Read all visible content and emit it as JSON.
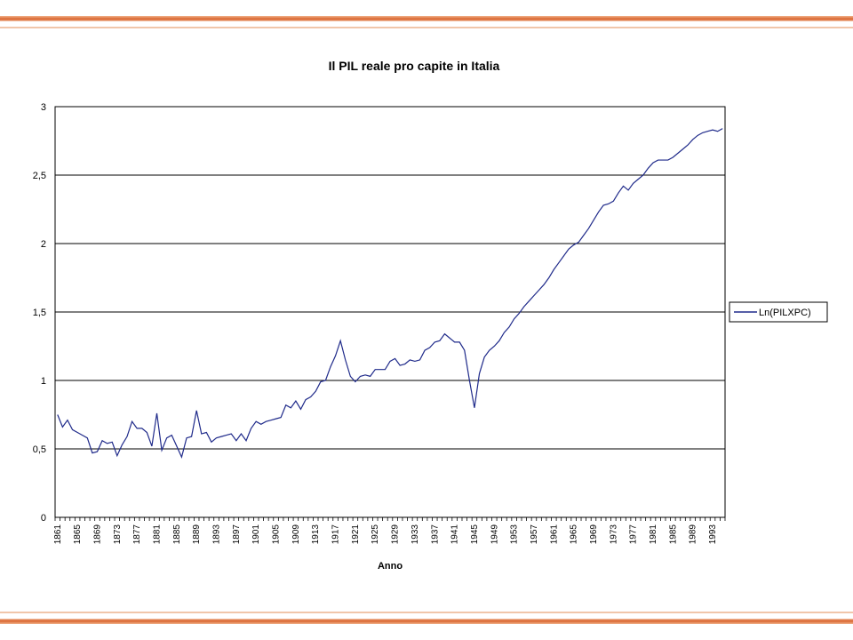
{
  "chart_data": {
    "type": "line",
    "title": "Il PIL reale pro capite in Italia",
    "xlabel": "Anno",
    "ylabel": "",
    "ylim": [
      0,
      3
    ],
    "yticks": [
      "0",
      "0,5",
      "1",
      "1,5",
      "2",
      "2,5",
      "3"
    ],
    "grid": true,
    "legend_position": "right",
    "xticks": [
      "1861",
      "1865",
      "1869",
      "1873",
      "1877",
      "1881",
      "1885",
      "1889",
      "1893",
      "1897",
      "1901",
      "1905",
      "1909",
      "1913",
      "1917",
      "1921",
      "1925",
      "1929",
      "1933",
      "1937",
      "1941",
      "1945",
      "1949",
      "1953",
      "1957",
      "1961",
      "1965",
      "1969",
      "1973",
      "1977",
      "1981",
      "1985",
      "1989",
      "1993"
    ],
    "x_start": 1861,
    "series": [
      {
        "name": "Ln(PILXPC)",
        "color": "#1f2a8a",
        "values": [
          0.75,
          0.66,
          0.71,
          0.64,
          0.62,
          0.6,
          0.58,
          0.47,
          0.48,
          0.56,
          0.54,
          0.55,
          0.45,
          0.53,
          0.59,
          0.7,
          0.65,
          0.65,
          0.62,
          0.52,
          0.76,
          0.49,
          0.58,
          0.6,
          0.52,
          0.44,
          0.58,
          0.59,
          0.78,
          0.61,
          0.62,
          0.55,
          0.58,
          0.59,
          0.6,
          0.61,
          0.56,
          0.61,
          0.56,
          0.65,
          0.7,
          0.68,
          0.7,
          0.71,
          0.72,
          0.73,
          0.82,
          0.8,
          0.85,
          0.79,
          0.86,
          0.88,
          0.92,
          0.99,
          1.0,
          1.1,
          1.18,
          1.29,
          1.15,
          1.03,
          0.99,
          1.03,
          1.04,
          1.03,
          1.08,
          1.08,
          1.08,
          1.14,
          1.16,
          1.11,
          1.12,
          1.15,
          1.14,
          1.15,
          1.22,
          1.24,
          1.28,
          1.29,
          1.34,
          1.31,
          1.28,
          1.28,
          1.22,
          1.0,
          0.8,
          1.05,
          1.17,
          1.22,
          1.25,
          1.29,
          1.35,
          1.39,
          1.45,
          1.49,
          1.54,
          1.58,
          1.62,
          1.66,
          1.7,
          1.75,
          1.81,
          1.86,
          1.91,
          1.96,
          1.99,
          2.01,
          2.06,
          2.11,
          2.17,
          2.23,
          2.28,
          2.29,
          2.31,
          2.37,
          2.42,
          2.39,
          2.44,
          2.47,
          2.5,
          2.55,
          2.59,
          2.61,
          2.61,
          2.61,
          2.63,
          2.66,
          2.69,
          2.72,
          2.76,
          2.79,
          2.81,
          2.82,
          2.83,
          2.82,
          2.84
        ]
      }
    ]
  }
}
